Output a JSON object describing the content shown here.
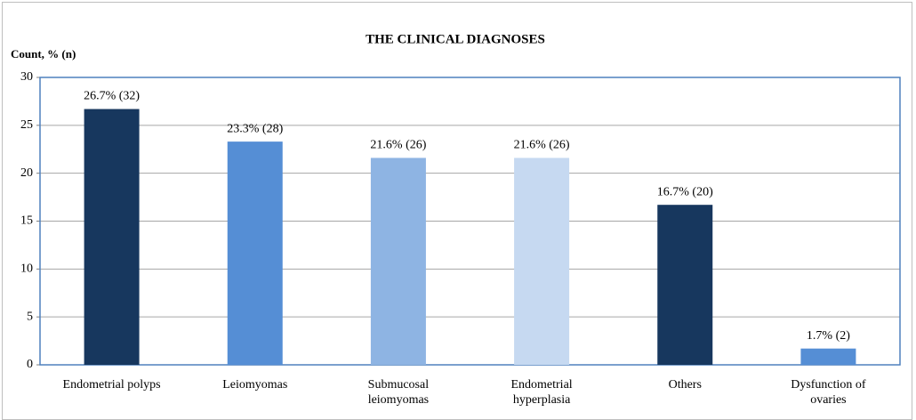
{
  "chart_data": {
    "type": "bar",
    "title": "THE CLINICAL DIAGNOSES",
    "y_label": "Count, % (n)",
    "categories": [
      "Endometrial polyps",
      "Leiomyomas",
      "Submucosal leiomyomas",
      "Endometrial hyperplasia",
      "Others",
      "Dysfunction of ovaries"
    ],
    "values": [
      26.7,
      23.3,
      21.6,
      21.6,
      16.7,
      1.7
    ],
    "value_labels": [
      "26.7% (32)",
      "23.3% (28)",
      "21.6% (26)",
      "21.6% (26)",
      "16.7% (20)",
      "1.7% (2)"
    ],
    "colors": [
      "#17375e",
      "#558ed5",
      "#8eb4e3",
      "#c6d9f1",
      "#17375e",
      "#558ed5"
    ],
    "ylim": [
      0,
      30
    ],
    "yticks": [
      0,
      5,
      10,
      15,
      20,
      25,
      30
    ],
    "grid": true
  }
}
